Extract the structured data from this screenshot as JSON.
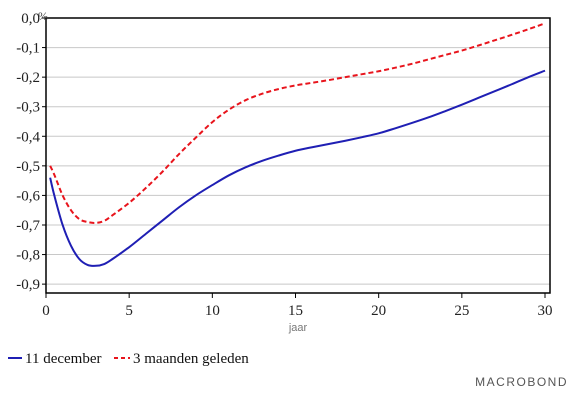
{
  "chart_data": {
    "type": "line",
    "title": "",
    "unit": "%",
    "xlabel": "jaar",
    "ylabel": "",
    "xlim": [
      0,
      30.3
    ],
    "ylim": [
      -0.93,
      0.0
    ],
    "x_ticks": [
      {
        "value": 0,
        "label": "0"
      },
      {
        "value": 5,
        "label": "5"
      },
      {
        "value": 10,
        "label": "10"
      },
      {
        "value": 15,
        "label": "15"
      },
      {
        "value": 20,
        "label": "20"
      },
      {
        "value": 25,
        "label": "25"
      },
      {
        "value": 30,
        "label": "30"
      }
    ],
    "y_ticks": [
      {
        "value": 0.0,
        "label": "0,0"
      },
      {
        "value": -0.1,
        "label": "-0,1"
      },
      {
        "value": -0.2,
        "label": "-0,2"
      },
      {
        "value": -0.3,
        "label": "-0,3"
      },
      {
        "value": -0.4,
        "label": "-0,4"
      },
      {
        "value": -0.5,
        "label": "-0,5"
      },
      {
        "value": -0.6,
        "label": "-0,6"
      },
      {
        "value": -0.7,
        "label": "-0,7"
      },
      {
        "value": -0.8,
        "label": "-0,8"
      },
      {
        "value": -0.9,
        "label": "-0,9"
      }
    ],
    "grid": true,
    "legend_position": "bottom-left",
    "series": [
      {
        "name": "11 december",
        "color": "#1f1fb4",
        "style": "solid",
        "x": [
          0.25,
          0.5,
          1,
          1.5,
          2,
          2.5,
          3,
          3.5,
          4,
          5,
          6,
          7,
          8,
          9,
          10,
          11,
          12,
          13,
          14,
          15,
          16,
          17,
          18,
          19,
          20,
          21,
          22,
          23,
          24,
          25,
          26,
          27,
          28,
          29,
          30
        ],
        "y": [
          -0.54,
          -0.6,
          -0.7,
          -0.77,
          -0.815,
          -0.835,
          -0.838,
          -0.832,
          -0.815,
          -0.775,
          -0.73,
          -0.685,
          -0.64,
          -0.6,
          -0.565,
          -0.532,
          -0.505,
          -0.483,
          -0.465,
          -0.449,
          -0.437,
          -0.426,
          -0.415,
          -0.403,
          -0.39,
          -0.373,
          -0.355,
          -0.336,
          -0.315,
          -0.293,
          -0.27,
          -0.247,
          -0.224,
          -0.2,
          -0.178
        ]
      },
      {
        "name": "3 maanden geleden",
        "color": "#e8141c",
        "style": "dashed",
        "x": [
          0.25,
          0.5,
          1,
          1.5,
          2,
          2.5,
          3,
          3.5,
          4,
          5,
          6,
          7,
          8,
          9,
          10,
          11,
          12,
          13,
          14,
          15,
          16,
          17,
          18,
          19,
          20,
          21,
          22,
          23,
          24,
          25,
          26,
          27,
          28,
          29,
          30
        ],
        "y": [
          -0.5,
          -0.53,
          -0.6,
          -0.65,
          -0.68,
          -0.69,
          -0.693,
          -0.686,
          -0.667,
          -0.625,
          -0.575,
          -0.52,
          -0.46,
          -0.405,
          -0.352,
          -0.31,
          -0.278,
          -0.256,
          -0.24,
          -0.228,
          -0.219,
          -0.21,
          -0.2,
          -0.19,
          -0.18,
          -0.168,
          -0.155,
          -0.14,
          -0.125,
          -0.11,
          -0.093,
          -0.075,
          -0.057,
          -0.038,
          -0.018
        ]
      }
    ]
  },
  "branding": {
    "name": "MACROBOND"
  }
}
